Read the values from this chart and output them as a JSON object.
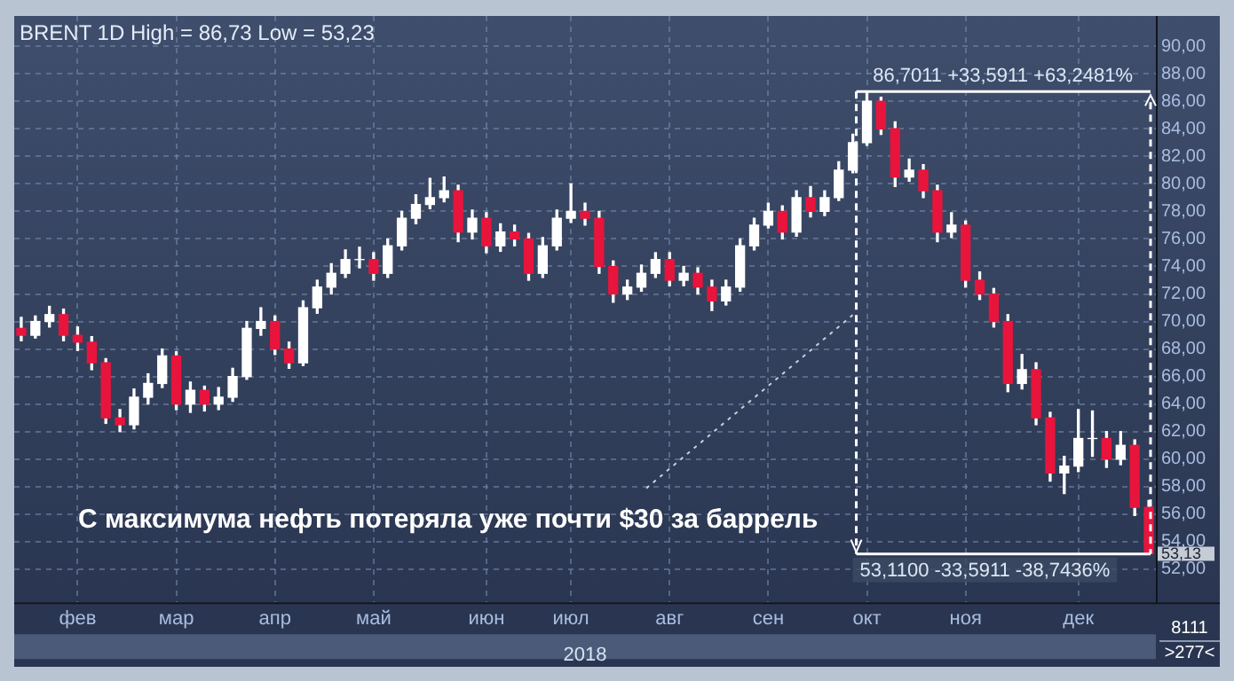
{
  "chart_data": {
    "type": "candlestick",
    "title": "BRENT 1D High = 86,73 Low = 53,23",
    "xlabel": "2018",
    "categories": [
      null,
      null,
      null,
      null,
      "фев",
      null,
      null,
      null,
      null,
      null,
      null,
      "мар",
      null,
      null,
      null,
      null,
      null,
      null,
      "апр",
      null,
      null,
      null,
      null,
      null,
      null,
      "май",
      null,
      null,
      null,
      null,
      null,
      null,
      null,
      "июн",
      null,
      null,
      null,
      null,
      null,
      "июл",
      null,
      null,
      null,
      null,
      null,
      null,
      "авг",
      null,
      null,
      null,
      null,
      null,
      null,
      "сен",
      null,
      null,
      null,
      null,
      null,
      null,
      "окт",
      null,
      null,
      null,
      null,
      null,
      null,
      "ноя",
      null,
      null,
      null,
      null,
      null,
      null,
      null,
      "дек",
      null,
      null,
      null,
      null,
      null
    ],
    "ohlc": [
      [
        69.5,
        70.3,
        68.6,
        69.0
      ],
      [
        69.0,
        70.4,
        68.8,
        70.0
      ],
      [
        70.0,
        71.1,
        69.6,
        70.5
      ],
      [
        70.5,
        70.9,
        68.6,
        69.0
      ],
      [
        69.0,
        69.6,
        67.9,
        68.5
      ],
      [
        68.5,
        68.9,
        66.5,
        67.0
      ],
      [
        67.0,
        67.3,
        62.6,
        63.0
      ],
      [
        63.0,
        63.6,
        62.0,
        62.5
      ],
      [
        62.5,
        65.1,
        62.2,
        64.5
      ],
      [
        64.5,
        66.2,
        64.0,
        65.5
      ],
      [
        65.5,
        68.0,
        65.2,
        67.5
      ],
      [
        67.5,
        67.8,
        63.6,
        64.0
      ],
      [
        64.0,
        65.6,
        63.4,
        65.0
      ],
      [
        65.0,
        65.3,
        63.5,
        64.0
      ],
      [
        64.0,
        65.2,
        63.6,
        64.5
      ],
      [
        64.5,
        66.6,
        64.2,
        66.0
      ],
      [
        66.0,
        70.0,
        65.8,
        69.5
      ],
      [
        69.5,
        71.0,
        69.0,
        70.0
      ],
      [
        70.0,
        70.4,
        67.6,
        68.0
      ],
      [
        68.0,
        68.5,
        66.6,
        67.0
      ],
      [
        67.0,
        71.5,
        66.8,
        71.0
      ],
      [
        71.0,
        73.0,
        70.6,
        72.5
      ],
      [
        72.5,
        74.2,
        72.0,
        73.5
      ],
      [
        73.5,
        75.2,
        73.2,
        74.5
      ],
      [
        74.5,
        75.4,
        73.9,
        74.5
      ],
      [
        74.5,
        75.0,
        73.0,
        73.5
      ],
      [
        73.5,
        76.0,
        73.2,
        75.5
      ],
      [
        75.5,
        78.0,
        75.2,
        77.5
      ],
      [
        77.5,
        79.2,
        77.1,
        78.5
      ],
      [
        78.5,
        80.4,
        78.2,
        79.0
      ],
      [
        79.0,
        80.5,
        78.7,
        79.5
      ],
      [
        79.5,
        79.9,
        75.8,
        76.5
      ],
      [
        76.5,
        78.1,
        76.0,
        77.5
      ],
      [
        77.5,
        77.9,
        75.0,
        75.5
      ],
      [
        75.5,
        77.1,
        75.1,
        76.5
      ],
      [
        76.5,
        77.0,
        75.5,
        76.0
      ],
      [
        76.0,
        76.4,
        73.0,
        73.5
      ],
      [
        73.5,
        76.1,
        73.2,
        75.5
      ],
      [
        75.5,
        78.1,
        75.2,
        77.5
      ],
      [
        77.5,
        80.0,
        77.2,
        78.0
      ],
      [
        78.0,
        78.6,
        77.0,
        77.5
      ],
      [
        77.5,
        78.0,
        73.5,
        74.0
      ],
      [
        74.0,
        74.4,
        71.4,
        72.0
      ],
      [
        72.0,
        73.0,
        71.6,
        72.5
      ],
      [
        72.5,
        74.1,
        72.2,
        73.5
      ],
      [
        73.5,
        75.0,
        73.2,
        74.5
      ],
      [
        74.5,
        75.0,
        72.6,
        73.0
      ],
      [
        73.0,
        74.0,
        72.6,
        73.5
      ],
      [
        73.5,
        73.9,
        72.0,
        72.5
      ],
      [
        72.5,
        73.0,
        70.8,
        71.5
      ],
      [
        71.5,
        73.0,
        71.2,
        72.5
      ],
      [
        72.5,
        76.0,
        72.2,
        75.5
      ],
      [
        75.5,
        77.5,
        75.2,
        77.0
      ],
      [
        77.0,
        78.6,
        76.8,
        78.0
      ],
      [
        78.0,
        78.4,
        76.0,
        76.5
      ],
      [
        76.5,
        79.5,
        76.2,
        79.0
      ],
      [
        79.0,
        79.8,
        77.6,
        78.0
      ],
      [
        78.0,
        79.5,
        77.7,
        79.0
      ],
      [
        79.0,
        81.6,
        78.8,
        81.0
      ],
      [
        81.0,
        83.6,
        80.8,
        83.0
      ],
      [
        83.0,
        86.7,
        82.8,
        86.0
      ],
      [
        86.0,
        86.3,
        83.6,
        84.0
      ],
      [
        84.0,
        84.5,
        79.8,
        80.5
      ],
      [
        80.5,
        81.8,
        80.2,
        81.0
      ],
      [
        81.0,
        81.4,
        79.0,
        79.5
      ],
      [
        79.5,
        79.9,
        75.8,
        76.5
      ],
      [
        76.5,
        77.9,
        76.1,
        77.0
      ],
      [
        77.0,
        77.3,
        72.5,
        73.0
      ],
      [
        73.0,
        73.6,
        71.6,
        72.0
      ],
      [
        72.0,
        72.4,
        69.6,
        70.0
      ],
      [
        70.0,
        70.5,
        64.9,
        65.5
      ],
      [
        65.5,
        67.6,
        65.1,
        66.5
      ],
      [
        66.5,
        67.0,
        62.5,
        63.0
      ],
      [
        63.0,
        63.4,
        58.4,
        59.0
      ],
      [
        59.0,
        60.2,
        57.5,
        59.5
      ],
      [
        59.5,
        63.6,
        59.1,
        61.5
      ],
      [
        61.5,
        63.5,
        60.2,
        61.5
      ],
      [
        61.5,
        62.0,
        59.4,
        60.0
      ],
      [
        60.0,
        62.0,
        59.6,
        61.0
      ],
      [
        61.0,
        61.4,
        55.9,
        56.5
      ],
      [
        56.5,
        57.0,
        53.11,
        53.13
      ]
    ],
    "ylim": [
      49.6,
      92.2
    ],
    "yticks": [
      {
        "value": 52,
        "label": "52,00"
      },
      {
        "value": 54,
        "label": "54,00"
      },
      {
        "value": 56,
        "label": "56,00"
      },
      {
        "value": 58,
        "label": "58,00"
      },
      {
        "value": 60,
        "label": "60,00"
      },
      {
        "value": 62,
        "label": "62,00"
      },
      {
        "value": 64,
        "label": "64,00"
      },
      {
        "value": 66,
        "label": "66,00"
      },
      {
        "value": 68,
        "label": "68,00"
      },
      {
        "value": 70,
        "label": "70,00"
      },
      {
        "value": 72,
        "label": "72,00"
      },
      {
        "value": 74,
        "label": "74,00"
      },
      {
        "value": 76,
        "label": "76,00"
      },
      {
        "value": 78,
        "label": "78,00"
      },
      {
        "value": 80,
        "label": "80,00"
      },
      {
        "value": 82,
        "label": "82,00"
      },
      {
        "value": 84,
        "label": "84,00"
      },
      {
        "value": 86,
        "label": "86,00"
      },
      {
        "value": 88,
        "label": "88,00"
      },
      {
        "value": 90,
        "label": "90,00"
      }
    ],
    "grid": true,
    "legend": false,
    "ref_lines": [
      {
        "axis": "y",
        "value": 86.7011,
        "label": "86,7011 +33,5911 +63,2481%"
      },
      {
        "axis": "y",
        "value": 53.11,
        "label": "53,1100 -33,5911 -38,7436%"
      }
    ],
    "annotations": [
      "С максимума нефть потеряла уже почти $30 за баррель",
      "53,13",
      "8111",
      ">277<"
    ]
  }
}
